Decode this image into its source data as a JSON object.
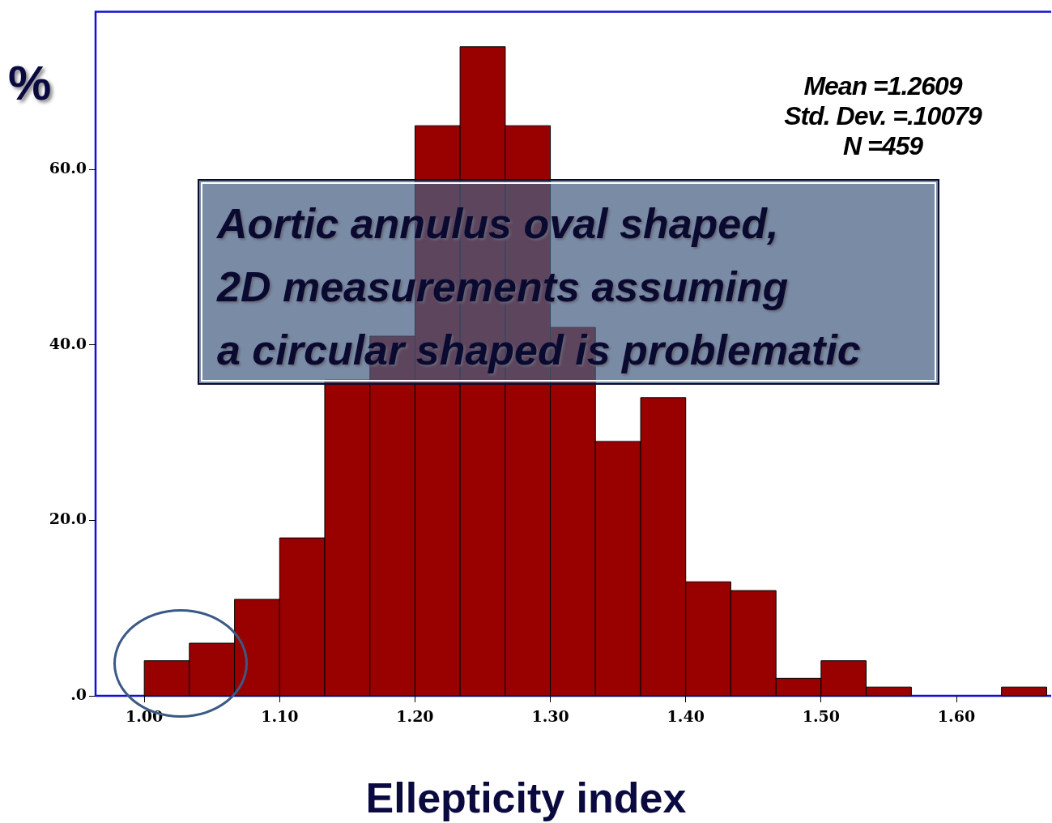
{
  "chart_data": {
    "type": "histogram",
    "ylabel": "%",
    "xlabel": "Ellepticity index",
    "bins": [
      1.0,
      1.0333,
      1.0667,
      1.1,
      1.1333,
      1.1667,
      1.2,
      1.2333,
      1.2667,
      1.3,
      1.3333,
      1.3667,
      1.4,
      1.4333,
      1.4667,
      1.5,
      1.5333,
      1.5667,
      1.6,
      1.6333,
      1.6667
    ],
    "values": [
      4,
      6,
      11,
      18,
      36,
      41,
      65,
      74,
      65,
      42,
      29,
      34,
      13,
      12,
      2,
      4,
      1,
      0,
      0,
      1
    ],
    "color": "#990000",
    "xlim": [
      0.964,
      1.67
    ],
    "xticks": [
      {
        "value": 1.0,
        "label": "1.00"
      },
      {
        "value": 1.1,
        "label": "1.10"
      },
      {
        "value": 1.2,
        "label": "1.20"
      },
      {
        "value": 1.3,
        "label": "1.30"
      },
      {
        "value": 1.4,
        "label": "1.40"
      },
      {
        "value": 1.5,
        "label": "1.50"
      },
      {
        "value": 1.6,
        "label": "1.60"
      }
    ],
    "ylim": [
      0,
      78
    ],
    "yticks": [
      {
        "value": 0,
        "label": ".0"
      },
      {
        "value": 20,
        "label": "20.0"
      },
      {
        "value": 40,
        "label": "40.0"
      },
      {
        "value": 60,
        "label": "60.0"
      }
    ],
    "grid": false,
    "legend": false,
    "annotations": [
      "Mean =1.2609",
      "Std. Dev. =.10079",
      "N =459",
      "Aortic annulus oval shaped,\n2D measurements assuming\na circular shaped is problematic"
    ]
  }
}
